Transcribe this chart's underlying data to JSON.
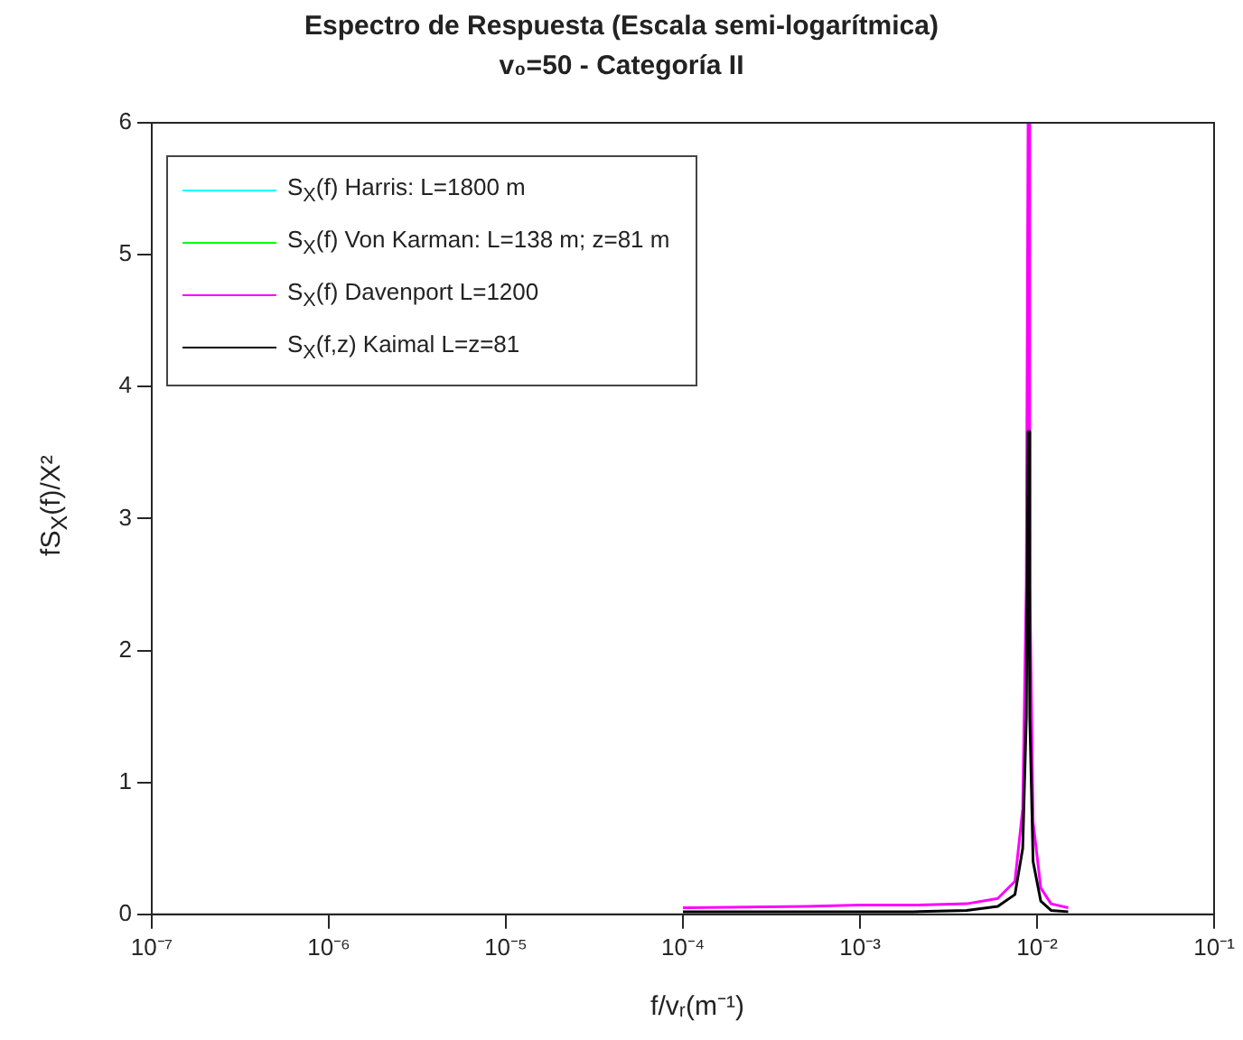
{
  "chart_data": {
    "type": "line",
    "title": "Espectro de Respuesta (Escala semi-logarítmica)",
    "subtitle": "v₀=50 - Categoría II",
    "xlabel": "f/vᵣ(m⁻¹)",
    "ylabel": "fS$_{X}$(f)/X²",
    "x": [
      0.0001,
      0.0005,
      0.001,
      0.002,
      0.004,
      0.006,
      0.0075,
      0.0083,
      0.0087,
      0.0089,
      0.0091,
      0.0095,
      0.0105,
      0.012,
      0.015
    ],
    "series": [
      {
        "name": "S$_{X}$(f) Harris: L=1800 m",
        "color": "#00ffff",
        "values": [
          null,
          null,
          null,
          null,
          null,
          null,
          null,
          null,
          null,
          null,
          null,
          null,
          null,
          null,
          null
        ]
      },
      {
        "name": "S$_{X}$(f) Von Karman: L=138 m; z=81 m",
        "color": "#00ff00",
        "values": [
          null,
          null,
          null,
          null,
          null,
          null,
          null,
          null,
          null,
          null,
          null,
          null,
          null,
          null,
          null
        ]
      },
      {
        "name": "S$_{X}$(f) Davenport L=1200",
        "color": "#ff00ff",
        "values": [
          0.05,
          0.06,
          0.07,
          0.07,
          0.08,
          0.12,
          0.25,
          0.8,
          2.5,
          6,
          2.5,
          0.7,
          0.2,
          0.08,
          0.05
        ]
      },
      {
        "name": "S$_{X}$(f,z) Kaimal L=z=81",
        "color": "#000000",
        "values": [
          0.02,
          0.02,
          0.02,
          0.02,
          0.03,
          0.06,
          0.15,
          0.5,
          1.5,
          3.66,
          1.5,
          0.4,
          0.1,
          0.03,
          0.02
        ]
      }
    ],
    "log": "x",
    "xlim": [
      1e-07,
      0.1
    ],
    "ylim": [
      0,
      6
    ],
    "xticks": [
      {
        "value": 1e-07,
        "label": "10⁻⁷"
      },
      {
        "value": 1e-06,
        "label": "10⁻⁶"
      },
      {
        "value": 1e-05,
        "label": "10⁻⁵"
      },
      {
        "value": 0.0001,
        "label": "10⁻⁴"
      },
      {
        "value": 0.001,
        "label": "10⁻³"
      },
      {
        "value": 0.01,
        "label": "10⁻²"
      },
      {
        "value": 0.1,
        "label": "10⁻¹"
      }
    ],
    "yticks": [
      0,
      1,
      2,
      3,
      4,
      5,
      6
    ],
    "grid": false,
    "legend": "top left",
    "marker": "none",
    "line_style": "solid"
  }
}
